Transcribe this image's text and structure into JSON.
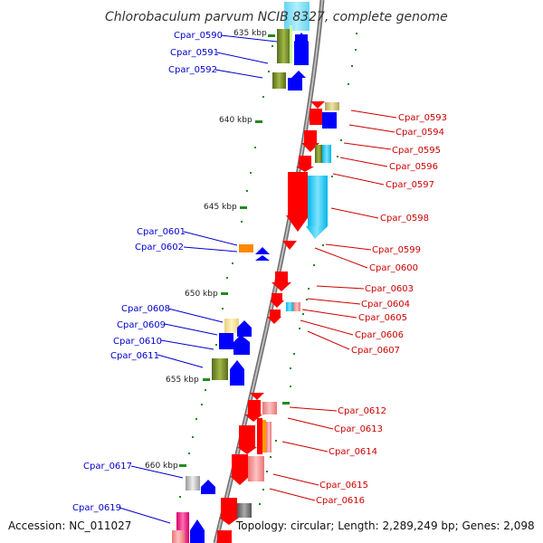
{
  "title": "Chlorobaculum parvum NCIB 8327, complete genome",
  "footer": {
    "accession": "Accession: NC_011027",
    "summary": "Topology: circular; Length: 2,289,249 bp; Genes: 2,098"
  },
  "ticks": [
    "635 kbp",
    "640 kbp",
    "645 kbp",
    "650 kbp",
    "655 kbp",
    "660 kbp"
  ],
  "genes_left": [
    "Cpar_0590",
    "Cpar_0591",
    "Cpar_0592",
    "Cpar_0601",
    "Cpar_0602",
    "Cpar_0608",
    "Cpar_0609",
    "Cpar_0610",
    "Cpar_0611",
    "Cpar_0617",
    "Cpar_0619"
  ],
  "genes_right": [
    "Cpar_0593",
    "Cpar_0594",
    "Cpar_0595",
    "Cpar_0596",
    "Cpar_0597",
    "Cpar_0598",
    "Cpar_0599",
    "Cpar_0600",
    "Cpar_0603",
    "Cpar_0604",
    "Cpar_0605",
    "Cpar_0606",
    "Cpar_0607",
    "Cpar_0612",
    "Cpar_0613",
    "Cpar_0614",
    "Cpar_0615",
    "Cpar_0616"
  ],
  "colors": {
    "minus_strand_arrow": "#0000ff",
    "plus_strand_arrow": "#ff0000",
    "left_label": "#0000cc",
    "right_label": "#cc0000",
    "tick": "#228b22",
    "backbone": "#808080"
  }
}
